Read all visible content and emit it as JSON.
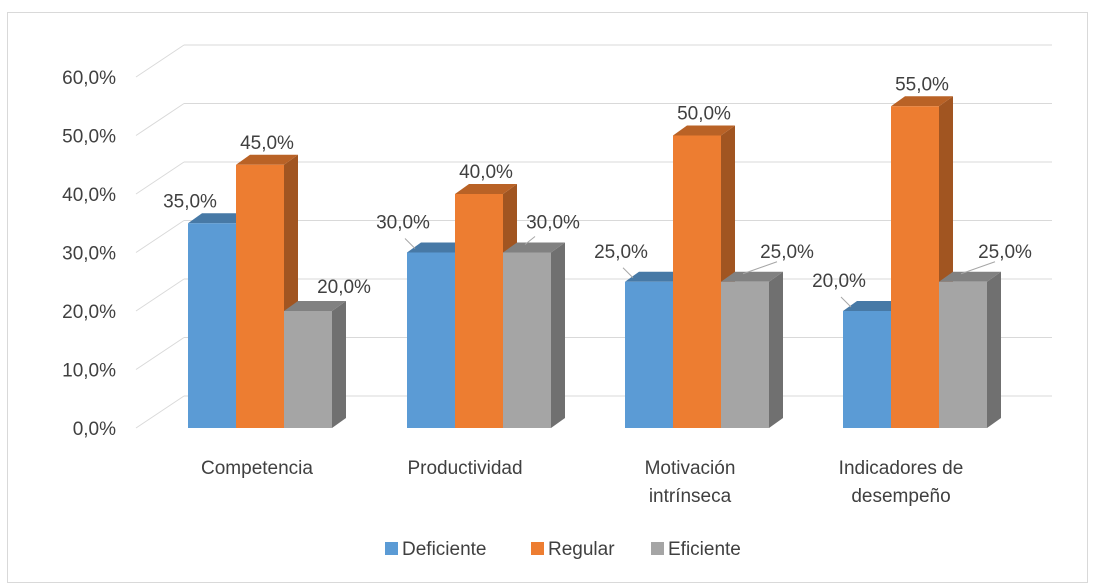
{
  "chart_data": {
    "type": "bar",
    "title": "",
    "xlabel": "",
    "ylabel": "",
    "ylim": [
      0,
      60
    ],
    "y_ticks": [
      "0,0%",
      "10,0%",
      "20,0%",
      "30,0%",
      "40,0%",
      "50,0%",
      "60,0%"
    ],
    "grid": true,
    "legend_position": "bottom",
    "categories": [
      [
        "Competencia"
      ],
      [
        "Productividad"
      ],
      [
        "Motivación",
        "intrínseca"
      ],
      [
        "Indicadores de",
        "desempeño"
      ]
    ],
    "series": [
      {
        "name": "Deficiente",
        "values": [
          35,
          30,
          25,
          20
        ],
        "labels": [
          "35,0%",
          "30,0%",
          "25,0%",
          "20,0%"
        ],
        "color": "#5b9bd5"
      },
      {
        "name": "Regular",
        "values": [
          45,
          40,
          50,
          55
        ],
        "labels": [
          "45,0%",
          "40,0%",
          "50,0%",
          "55,0%"
        ],
        "color": "#ed7d31"
      },
      {
        "name": "Eficiente",
        "values": [
          20,
          30,
          25,
          25
        ],
        "labels": [
          "20,0%",
          "30,0%",
          "25,0%",
          "25,0%"
        ],
        "color": "#a5a5a5"
      }
    ]
  }
}
